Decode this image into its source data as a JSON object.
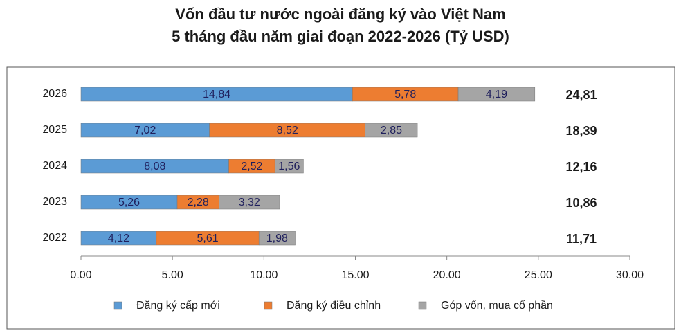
{
  "chart_data": {
    "type": "stacked-barh",
    "title": "Vốn đầu tư nước ngoài đăng ký vào Việt Nam",
    "subtitle": "5 tháng đầu năm giai đoạn 2022-2026 (Tỷ USD)",
    "categories": [
      "2026",
      "2025",
      "2024",
      "2023",
      "2022"
    ],
    "series": [
      {
        "name": "Đăng ký cấp mới",
        "color": "#5b9bd5",
        "values": [
          14.84,
          7.02,
          8.08,
          5.26,
          4.12
        ],
        "value_labels": [
          "14,84",
          "7,02",
          "8,08",
          "5,26",
          "4,12"
        ]
      },
      {
        "name": "Đăng ký điều chỉnh",
        "color": "#ed7d31",
        "values": [
          5.78,
          8.52,
          2.52,
          2.28,
          5.61
        ],
        "value_labels": [
          "5,78",
          "8,52",
          "2,52",
          "2,28",
          "5,61"
        ]
      },
      {
        "name": "Góp vốn, mua cổ phần",
        "color": "#a5a5a5",
        "values": [
          4.19,
          2.85,
          1.56,
          3.32,
          1.98
        ],
        "value_labels": [
          "4,19",
          "2,85",
          "1,56",
          "3,32",
          "1,98"
        ]
      }
    ],
    "annotations": [
      "24,81",
      "18,39",
      "12,16",
      "10,86",
      "11,71"
    ],
    "xlim": [
      0,
      30
    ],
    "xticks": [
      {
        "value": 0,
        "label": "0.00"
      },
      {
        "value": 5,
        "label": "5.00"
      },
      {
        "value": 10,
        "label": "10.00"
      },
      {
        "value": 15,
        "label": "15.00"
      },
      {
        "value": 20,
        "label": "20.00"
      },
      {
        "value": 25,
        "label": "25.00"
      },
      {
        "value": 30,
        "label": "30.00"
      }
    ],
    "legend": "bottom"
  }
}
